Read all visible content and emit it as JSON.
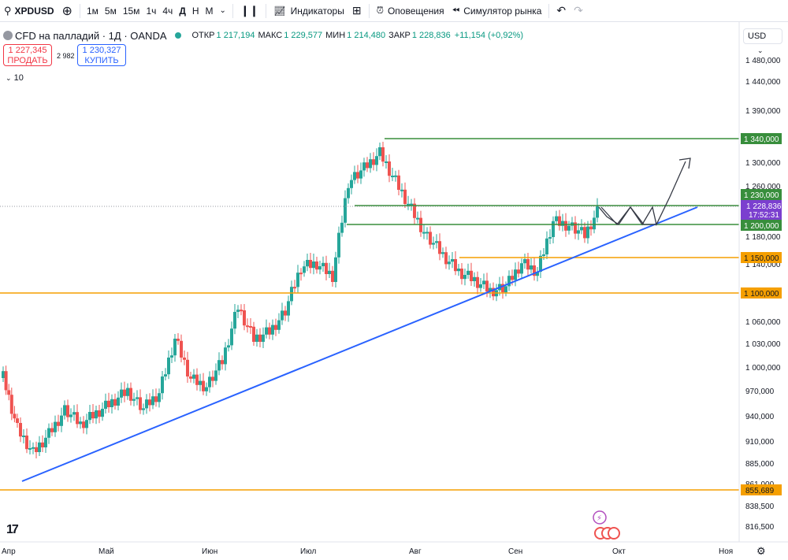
{
  "toolbar": {
    "symbol": "XPDUSD",
    "timeframes": [
      "1м",
      "5м",
      "15м",
      "1ч",
      "4ч",
      "Д",
      "Н",
      "М"
    ],
    "active_timeframe": "Д",
    "indicators_label": "Индикаторы",
    "alerts_label": "Оповещения",
    "replay_label": "Симулятор рынка"
  },
  "legend": {
    "title": "CFD на палладий · 1Д · OANDA",
    "open_label": "ОТКР",
    "open": "1 217,194",
    "high_label": "МАКС",
    "high": "1 229,577",
    "low_label": "МИН",
    "low": "1 214,480",
    "close_label": "ЗАКР",
    "close": "1 228,836",
    "change": "+11,154 (+0,92%)"
  },
  "trade": {
    "sell_price": "1 227,345",
    "sell_label": "ПРОДАТЬ",
    "spread": "2 982",
    "buy_price": "1 230,327",
    "buy_label": "КУПИТЬ"
  },
  "indicators_count": "10",
  "currency": "USD",
  "price_axis": [
    "1 480,000",
    "1 440,000",
    "1 390,000",
    "1 300,000",
    "1 260,000",
    "1 180,000",
    "1 140,000",
    "1 060,000",
    "1 030,000",
    "1 000,000",
    "970,000",
    "940,000",
    "910,000",
    "885,000",
    "861,000",
    "838,500",
    "816,500"
  ],
  "level_labels": [
    "1 340,000",
    "1 230,000",
    "1 200,000",
    "1 150,000",
    "1 100,000",
    "855,689"
  ],
  "current_price": "1 228,836",
  "countdown": "17:52:31",
  "time_axis": [
    "Апр",
    "Май",
    "Июн",
    "Июл",
    "Авг",
    "Сен",
    "Окт",
    "Ноя"
  ],
  "colors": {
    "up": "#26a69a",
    "down": "#ef5350",
    "green_level": "#388e3c",
    "orange_level": "#f59f00",
    "trend": "#2962ff",
    "price_tag": "#7b3fcf"
  },
  "chart_data": {
    "type": "candlestick",
    "symbol": "XPDUSD",
    "levels": [
      1340,
      1230,
      1200,
      1150,
      1100,
      855.689
    ],
    "last_close": 1228.836
  }
}
